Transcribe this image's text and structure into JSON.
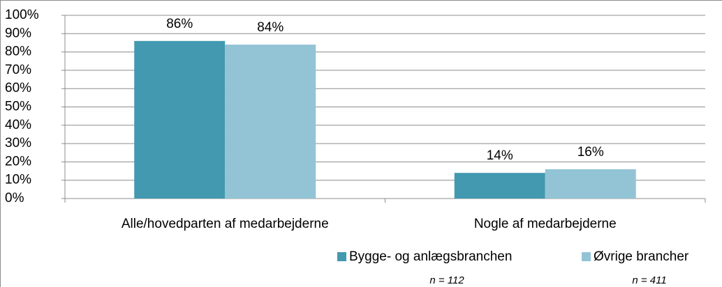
{
  "chart_data": {
    "type": "bar",
    "categories": [
      "Alle/hovedparten af medarbejderne",
      "Nogle af medarbejderne"
    ],
    "series": [
      {
        "name": "Bygge- og anlægsbranchen",
        "color": "#4299b0",
        "values": [
          86,
          14
        ],
        "value_labels": [
          "86%",
          "14%"
        ]
      },
      {
        "name": "Øvrige brancher",
        "color": "#93c4d6",
        "values": [
          84,
          16
        ],
        "value_labels": [
          "84%",
          "16%"
        ]
      }
    ],
    "ylim": [
      0,
      100
    ],
    "yticks": [
      {
        "value": 0,
        "label": "0%"
      },
      {
        "value": 10,
        "label": "10%"
      },
      {
        "value": 20,
        "label": "20%"
      },
      {
        "value": 30,
        "label": "30%"
      },
      {
        "value": 40,
        "label": "40%"
      },
      {
        "value": 50,
        "label": "50%"
      },
      {
        "value": 60,
        "label": "60%"
      },
      {
        "value": 70,
        "label": "70%"
      },
      {
        "value": 80,
        "label": "80%"
      },
      {
        "value": 90,
        "label": "90%"
      },
      {
        "value": 100,
        "label": "100%"
      }
    ],
    "grid": true,
    "legend": "bottom",
    "annotations": [
      "n =  112",
      "n = 411"
    ]
  }
}
